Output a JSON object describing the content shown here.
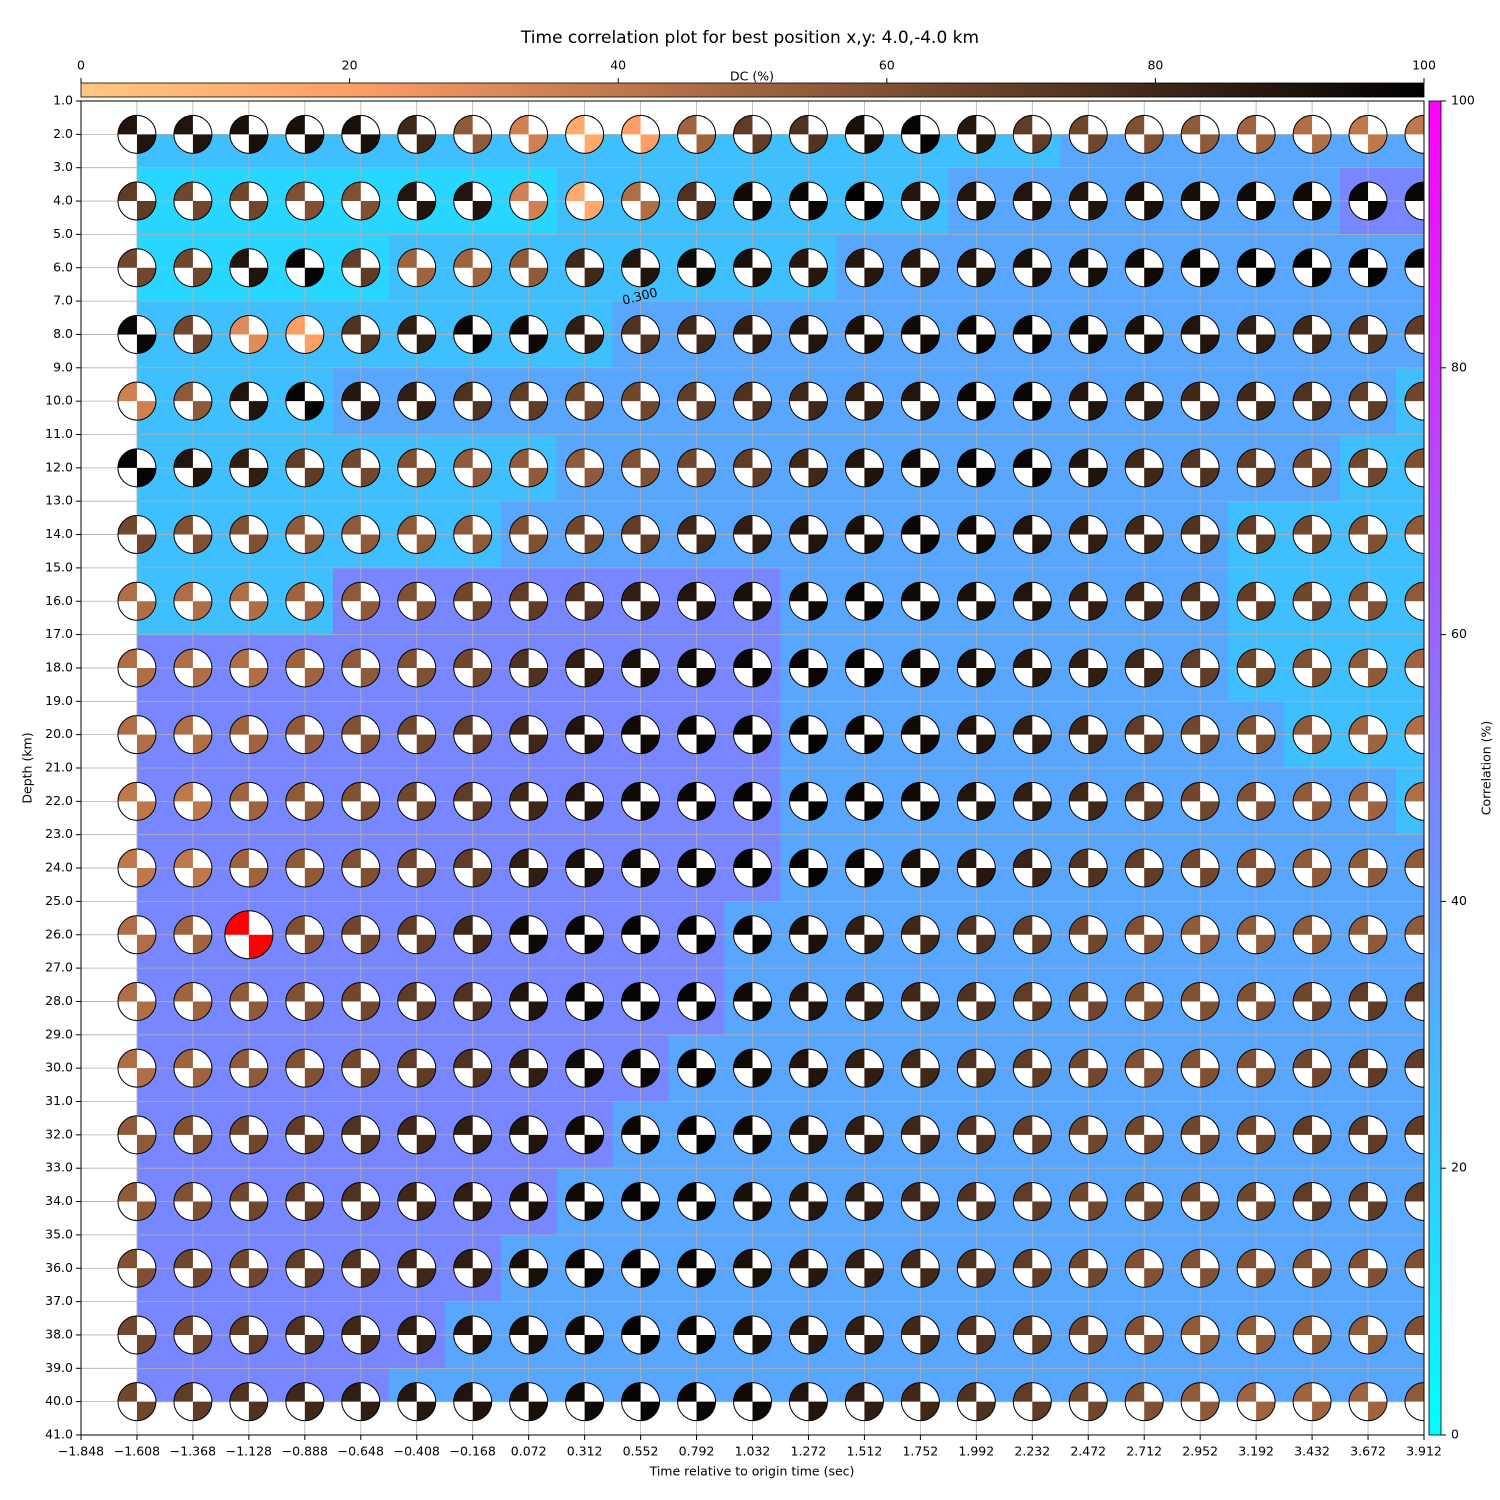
{
  "chart_data": {
    "type": "beachball-grid",
    "title": "Time correlation plot for best position x,y: 4.0,-4.0 km",
    "xlabel": "Time relative to origin time (sec)",
    "ylabel": "Depth (km)",
    "x": [
      -1.608,
      -1.368,
      -1.128,
      -0.888,
      -0.648,
      -0.408,
      -0.168,
      0.072,
      0.312,
      0.552,
      0.792,
      1.032,
      1.272,
      1.512,
      1.752,
      1.992,
      2.232,
      2.472,
      2.712,
      2.952,
      3.192,
      3.432,
      3.672,
      3.912
    ],
    "depths": [
      2,
      4,
      6,
      8,
      10,
      12,
      14,
      16,
      18,
      20,
      22,
      24,
      26,
      28,
      30,
      32,
      34,
      36,
      38,
      40
    ],
    "dc": [
      [
        90,
        90,
        92,
        92,
        92,
        80,
        55,
        35,
        15,
        20,
        50,
        70,
        75,
        92,
        98,
        88,
        70,
        65,
        60,
        55,
        50,
        45,
        40,
        40
      ],
      [
        70,
        65,
        65,
        60,
        60,
        90,
        90,
        35,
        15,
        45,
        75,
        95,
        97,
        100,
        90,
        90,
        90,
        90,
        92,
        93,
        95,
        95,
        97,
        97
      ],
      [
        65,
        65,
        90,
        98,
        70,
        50,
        50,
        55,
        80,
        90,
        95,
        92,
        88,
        88,
        88,
        90,
        92,
        93,
        95,
        97,
        98,
        98,
        98,
        98
      ],
      [
        97,
        65,
        30,
        20,
        75,
        85,
        97,
        95,
        85,
        75,
        80,
        85,
        90,
        92,
        95,
        97,
        97,
        95,
        92,
        90,
        85,
        80,
        75,
        70
      ],
      [
        35,
        55,
        90,
        98,
        88,
        85,
        75,
        70,
        65,
        65,
        70,
        75,
        80,
        85,
        90,
        97,
        97,
        90,
        85,
        80,
        80,
        75,
        70,
        65
      ],
      [
        98,
        90,
        85,
        70,
        65,
        60,
        55,
        55,
        55,
        60,
        65,
        70,
        80,
        90,
        95,
        98,
        97,
        90,
        80,
        75,
        70,
        65,
        65,
        60
      ],
      [
        65,
        60,
        60,
        55,
        55,
        55,
        55,
        60,
        65,
        70,
        80,
        85,
        90,
        92,
        97,
        95,
        90,
        85,
        80,
        75,
        70,
        65,
        60,
        55
      ],
      [
        45,
        45,
        45,
        50,
        55,
        60,
        65,
        70,
        75,
        85,
        90,
        92,
        95,
        97,
        95,
        92,
        90,
        85,
        80,
        75,
        70,
        65,
        60,
        55
      ],
      [
        45,
        45,
        45,
        50,
        55,
        60,
        65,
        75,
        85,
        92,
        95,
        97,
        97,
        98,
        95,
        92,
        88,
        85,
        80,
        70,
        65,
        60,
        55,
        50
      ],
      [
        45,
        45,
        50,
        55,
        60,
        65,
        70,
        80,
        90,
        95,
        97,
        97,
        98,
        97,
        95,
        90,
        85,
        80,
        70,
        65,
        60,
        55,
        50,
        45
      ],
      [
        40,
        40,
        50,
        55,
        60,
        65,
        70,
        80,
        90,
        95,
        97,
        98,
        98,
        97,
        95,
        90,
        85,
        80,
        70,
        65,
        60,
        55,
        50,
        45
      ],
      [
        40,
        40,
        50,
        55,
        60,
        65,
        70,
        85,
        92,
        95,
        97,
        98,
        98,
        97,
        92,
        88,
        82,
        75,
        70,
        65,
        60,
        55,
        55,
        55
      ],
      [
        45,
        50,
        null,
        60,
        65,
        70,
        80,
        95,
        97,
        98,
        98,
        97,
        92,
        85,
        80,
        75,
        70,
        65,
        60,
        55,
        55,
        55,
        55,
        55
      ],
      [
        45,
        50,
        55,
        60,
        65,
        70,
        75,
        90,
        97,
        98,
        98,
        95,
        90,
        85,
        80,
        75,
        70,
        65,
        60,
        60,
        60,
        65,
        70,
        70
      ],
      [
        45,
        50,
        55,
        60,
        65,
        70,
        75,
        85,
        95,
        97,
        98,
        95,
        90,
        85,
        80,
        75,
        70,
        65,
        60,
        60,
        60,
        65,
        70,
        70
      ],
      [
        55,
        60,
        65,
        70,
        75,
        80,
        85,
        90,
        95,
        97,
        98,
        95,
        90,
        85,
        80,
        75,
        70,
        65,
        65,
        65,
        65,
        70,
        70,
        70
      ],
      [
        55,
        60,
        65,
        70,
        75,
        80,
        85,
        92,
        95,
        98,
        97,
        92,
        88,
        85,
        80,
        75,
        70,
        65,
        65,
        65,
        65,
        70,
        70,
        70
      ],
      [
        60,
        65,
        65,
        70,
        75,
        80,
        85,
        92,
        97,
        98,
        97,
        92,
        88,
        85,
        80,
        75,
        70,
        65,
        60,
        60,
        60,
        60,
        60,
        60
      ],
      [
        65,
        65,
        70,
        75,
        80,
        85,
        90,
        92,
        95,
        98,
        97,
        92,
        88,
        85,
        80,
        75,
        70,
        65,
        60,
        55,
        55,
        55,
        55,
        60
      ],
      [
        65,
        70,
        75,
        80,
        85,
        88,
        90,
        92,
        95,
        98,
        97,
        95,
        90,
        85,
        80,
        75,
        70,
        65,
        60,
        55,
        50,
        50,
        50,
        55
      ]
    ],
    "correlation": [
      [
        25,
        25,
        25,
        25,
        25,
        25,
        25,
        25,
        25,
        25,
        25,
        25,
        25,
        25,
        25,
        25,
        25,
        35,
        35,
        35,
        35,
        35,
        35,
        35
      ],
      [
        16,
        16,
        16,
        16,
        16,
        16,
        16,
        16,
        25,
        25,
        25,
        25,
        25,
        25,
        25,
        35,
        35,
        35,
        35,
        35,
        35,
        35,
        47,
        47
      ],
      [
        16,
        16,
        16,
        16,
        16,
        25,
        25,
        25,
        25,
        25,
        25,
        25,
        25,
        35,
        35,
        35,
        35,
        35,
        35,
        35,
        35,
        35,
        35,
        35
      ],
      [
        25,
        25,
        25,
        25,
        25,
        25,
        25,
        25,
        25,
        35,
        35,
        35,
        35,
        35,
        35,
        35,
        35,
        35,
        35,
        35,
        35,
        35,
        35,
        35
      ],
      [
        25,
        25,
        25,
        25,
        35,
        35,
        35,
        35,
        35,
        35,
        35,
        35,
        35,
        35,
        35,
        35,
        35,
        35,
        35,
        35,
        35,
        35,
        35,
        25
      ],
      [
        25,
        25,
        25,
        25,
        25,
        25,
        25,
        25,
        35,
        35,
        35,
        35,
        35,
        35,
        35,
        35,
        35,
        35,
        35,
        35,
        35,
        35,
        25,
        25
      ],
      [
        25,
        25,
        25,
        25,
        25,
        25,
        25,
        35,
        35,
        35,
        35,
        35,
        35,
        35,
        35,
        35,
        35,
        35,
        35,
        35,
        25,
        25,
        25,
        25
      ],
      [
        25,
        25,
        25,
        25,
        47,
        47,
        47,
        47,
        47,
        47,
        47,
        47,
        35,
        35,
        35,
        35,
        35,
        35,
        35,
        35,
        25,
        25,
        25,
        25
      ],
      [
        47,
        47,
        47,
        47,
        47,
        47,
        47,
        47,
        47,
        47,
        47,
        47,
        35,
        35,
        35,
        35,
        35,
        35,
        35,
        35,
        25,
        25,
        25,
        25
      ],
      [
        47,
        47,
        47,
        47,
        47,
        47,
        47,
        47,
        47,
        47,
        47,
        47,
        35,
        35,
        35,
        35,
        35,
        35,
        35,
        35,
        35,
        25,
        25,
        25
      ],
      [
        47,
        47,
        47,
        47,
        47,
        47,
        47,
        47,
        47,
        47,
        47,
        47,
        35,
        35,
        35,
        35,
        35,
        35,
        35,
        35,
        35,
        35,
        35,
        25
      ],
      [
        47,
        47,
        47,
        47,
        47,
        47,
        47,
        47,
        47,
        47,
        47,
        47,
        35,
        35,
        35,
        35,
        35,
        35,
        35,
        35,
        35,
        35,
        35,
        35
      ],
      [
        47,
        47,
        47,
        47,
        47,
        47,
        47,
        47,
        47,
        47,
        47,
        35,
        35,
        35,
        35,
        35,
        35,
        35,
        35,
        35,
        35,
        35,
        35,
        35
      ],
      [
        47,
        47,
        47,
        47,
        47,
        47,
        47,
        47,
        47,
        47,
        47,
        35,
        35,
        35,
        35,
        35,
        35,
        35,
        35,
        35,
        35,
        35,
        35,
        35
      ],
      [
        47,
        47,
        47,
        47,
        47,
        47,
        47,
        47,
        47,
        47,
        35,
        35,
        35,
        35,
        35,
        35,
        35,
        35,
        35,
        35,
        35,
        35,
        35,
        35
      ],
      [
        47,
        47,
        47,
        47,
        47,
        47,
        47,
        47,
        47,
        35,
        35,
        35,
        35,
        35,
        35,
        35,
        35,
        35,
        35,
        35,
        35,
        35,
        35,
        35
      ],
      [
        47,
        47,
        47,
        47,
        47,
        47,
        47,
        47,
        35,
        35,
        35,
        35,
        35,
        35,
        35,
        35,
        35,
        35,
        35,
        35,
        35,
        35,
        35,
        35
      ],
      [
        47,
        47,
        47,
        47,
        47,
        47,
        47,
        35,
        35,
        35,
        35,
        35,
        35,
        35,
        35,
        35,
        35,
        35,
        35,
        35,
        35,
        35,
        35,
        35
      ],
      [
        47,
        47,
        47,
        47,
        47,
        47,
        35,
        35,
        35,
        35,
        35,
        35,
        35,
        35,
        35,
        35,
        35,
        35,
        35,
        35,
        35,
        35,
        35,
        35
      ],
      [
        47,
        47,
        47,
        47,
        47,
        35,
        35,
        35,
        35,
        35,
        35,
        35,
        35,
        35,
        35,
        35,
        35,
        35,
        35,
        35,
        35,
        35,
        35,
        35
      ]
    ],
    "best": {
      "x": -1.128,
      "depth": 26,
      "color": "#ff0000"
    },
    "contour_labels": [
      "0.300"
    ],
    "xlim": [
      -1.848,
      3.912
    ],
    "ylim": [
      41,
      1
    ],
    "xticks": [
      {
        "value": -1.848,
        "label": "−1.848"
      },
      {
        "value": -1.608,
        "label": "−1.608"
      },
      {
        "value": -1.368,
        "label": "−1.368"
      },
      {
        "value": -1.128,
        "label": "−1.128"
      },
      {
        "value": -0.888,
        "label": "−0.888"
      },
      {
        "value": -0.648,
        "label": "−0.648"
      },
      {
        "value": -0.408,
        "label": "−0.408"
      },
      {
        "value": -0.168,
        "label": "−0.168"
      },
      0.072,
      0.312,
      0.552,
      0.792,
      1.032,
      1.272,
      1.512,
      1.752,
      1.992,
      2.232,
      2.472,
      2.712,
      2.952,
      3.192,
      3.432,
      3.672,
      3.912
    ],
    "yticks": [
      {
        "value": 1,
        "label": "1.0"
      },
      {
        "value": 2,
        "label": "2.0"
      },
      {
        "value": 3,
        "label": "3.0"
      },
      {
        "value": 4,
        "label": "4.0"
      },
      {
        "value": 5,
        "label": "5.0"
      },
      {
        "value": 6,
        "label": "6.0"
      },
      {
        "value": 7,
        "label": "7.0"
      },
      {
        "value": 8,
        "label": "8.0"
      },
      {
        "value": 9,
        "label": "9.0"
      },
      {
        "value": 10,
        "label": "10.0"
      },
      {
        "value": 11,
        "label": "11.0"
      },
      {
        "value": 12,
        "label": "12.0"
      },
      {
        "value": 13,
        "label": "13.0"
      },
      {
        "value": 14,
        "label": "14.0"
      },
      {
        "value": 15,
        "label": "15.0"
      },
      {
        "value": 16,
        "label": "16.0"
      },
      {
        "value": 17,
        "label": "17.0"
      },
      {
        "value": 18,
        "label": "18.0"
      },
      {
        "value": 19,
        "label": "19.0"
      },
      {
        "value": 20,
        "label": "20.0"
      },
      {
        "value": 21,
        "label": "21.0"
      },
      {
        "value": 22,
        "label": "22.0"
      },
      {
        "value": 23,
        "label": "23.0"
      },
      {
        "value": 24,
        "label": "24.0"
      },
      {
        "value": 25,
        "label": "25.0"
      },
      {
        "value": 26,
        "label": "26.0"
      },
      {
        "value": 27,
        "label": "27.0"
      },
      {
        "value": 28,
        "label": "28.0"
      },
      {
        "value": 29,
        "label": "29.0"
      },
      {
        "value": 30,
        "label": "30.0"
      },
      {
        "value": 31,
        "label": "31.0"
      },
      {
        "value": 32,
        "label": "32.0"
      },
      {
        "value": 33,
        "label": "33.0"
      },
      {
        "value": 34,
        "label": "34.0"
      },
      {
        "value": 35,
        "label": "35.0"
      },
      {
        "value": 36,
        "label": "36.0"
      },
      {
        "value": 37,
        "label": "37.0"
      },
      {
        "value": 38,
        "label": "38.0"
      },
      {
        "value": 39,
        "label": "39.0"
      },
      {
        "value": 40,
        "label": "40.0"
      },
      {
        "value": 41,
        "label": "41.0"
      }
    ],
    "grid": true,
    "dc_colorbar": {
      "label": "DC (%)",
      "lim": [
        0,
        100
      ],
      "ticks": [
        0,
        20,
        40,
        60,
        80,
        100
      ],
      "colormap": "copper_r"
    },
    "corr_colorbar": {
      "label": "Correlation (%)",
      "lim": [
        0,
        100
      ],
      "ticks": [
        0,
        20,
        40,
        60,
        80,
        100
      ],
      "colormap": "cool"
    }
  }
}
